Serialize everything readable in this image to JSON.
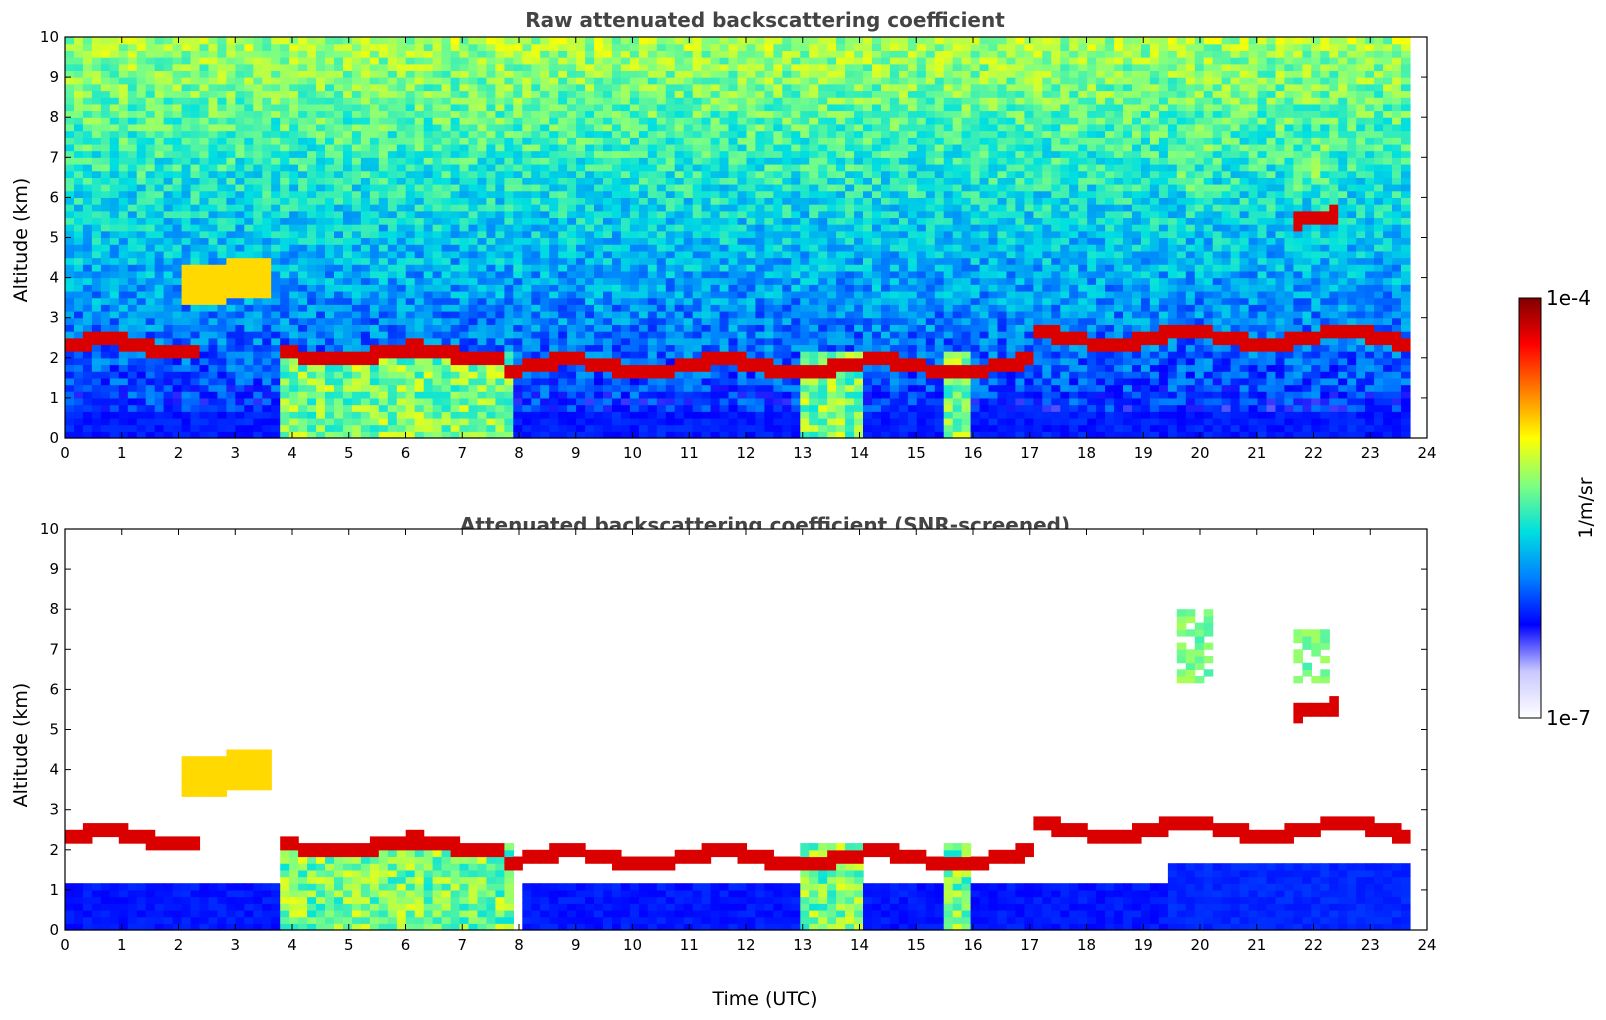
{
  "chart_data": [
    {
      "type": "heatmap",
      "title": "Raw attenuated backscattering coefficient",
      "xlabel": "",
      "ylabel": "Altitude (km)",
      "xlim": [
        0,
        24
      ],
      "ylim": [
        0,
        10
      ],
      "xticks": [
        "0",
        "1",
        "2",
        "3",
        "4",
        "5",
        "6",
        "7",
        "8",
        "9",
        "10",
        "11",
        "12",
        "13",
        "14",
        "15",
        "16",
        "17",
        "18",
        "19",
        "20",
        "21",
        "22",
        "23",
        "24"
      ],
      "yticks": [
        "0",
        "1",
        "2",
        "3",
        "4",
        "5",
        "6",
        "7",
        "8",
        "9",
        "10"
      ],
      "data_end_time": 23.7,
      "features": {
        "cloud_layers": [
          {
            "t0": 0.0,
            "t1": 2.3,
            "z": 2.3,
            "intensity": "high"
          },
          {
            "t0": 2.1,
            "t1": 3.6,
            "z": 3.9,
            "intensity": "medium-high"
          },
          {
            "t0": 3.8,
            "t1": 7.8,
            "z": 2.1,
            "intensity": "high"
          },
          {
            "t0": 7.8,
            "t1": 17.0,
            "z": 1.8,
            "intensity": "high"
          },
          {
            "t0": 17.0,
            "t1": 23.7,
            "z": 2.5,
            "intensity": "high"
          },
          {
            "t0": 21.7,
            "t1": 22.5,
            "z": 5.45,
            "intensity": "high"
          }
        ],
        "ice_cloud_patches": [
          {
            "t0": 19.6,
            "t1": 20.3,
            "z0": 6.2,
            "z1": 8.0
          },
          {
            "t0": 21.6,
            "t1": 22.3,
            "z0": 6.1,
            "z1": 7.5
          }
        ],
        "precipitation_shafts": [
          {
            "t0": 3.8,
            "t1": 7.9
          },
          {
            "t0": 12.9,
            "t1": 14.1
          },
          {
            "t0": 15.5,
            "t1": 15.9
          }
        ]
      }
    },
    {
      "type": "heatmap",
      "title": "Attenuated backscattering coefficient (SNR-screened)",
      "xlabel": "Time (UTC)",
      "ylabel": "Altitude (km)",
      "xlim": [
        0,
        24
      ],
      "ylim": [
        0,
        10
      ],
      "xticks": [
        "0",
        "1",
        "2",
        "3",
        "4",
        "5",
        "6",
        "7",
        "8",
        "9",
        "10",
        "11",
        "12",
        "13",
        "14",
        "15",
        "16",
        "17",
        "18",
        "19",
        "20",
        "21",
        "22",
        "23",
        "24"
      ],
      "yticks": [
        "0",
        "1",
        "2",
        "3",
        "4",
        "5",
        "6",
        "7",
        "8",
        "9",
        "10"
      ],
      "data_end_time": 23.7
    }
  ],
  "colorbar": {
    "label": "1/m/sr",
    "min_label": "1e-7",
    "max_label": "1e-4",
    "scale": "log",
    "colormap": [
      "#ffffff",
      "#c8c8ff",
      "#0000ff",
      "#0080ff",
      "#00e0e0",
      "#80ff80",
      "#ffff00",
      "#ff8000",
      "#ff0000",
      "#800000"
    ]
  }
}
